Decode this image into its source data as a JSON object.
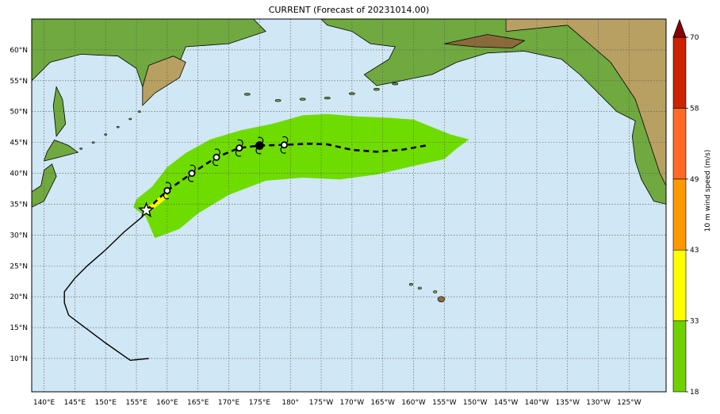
{
  "title": "CURRENT (Forecast of 20231014.00)",
  "map": {
    "lon_range": [
      138,
      241
    ],
    "lat_range": [
      4.6,
      65
    ],
    "lon_ticks": [
      {
        "lon": 140,
        "label": "140°E"
      },
      {
        "lon": 145,
        "label": "145°E"
      },
      {
        "lon": 150,
        "label": "150°E"
      },
      {
        "lon": 155,
        "label": "155°E"
      },
      {
        "lon": 160,
        "label": "160°E"
      },
      {
        "lon": 165,
        "label": "165°E"
      },
      {
        "lon": 170,
        "label": "170°E"
      },
      {
        "lon": 175,
        "label": "175°E"
      },
      {
        "lon": 180,
        "label": "180°"
      },
      {
        "lon": 185,
        "label": "175°W"
      },
      {
        "lon": 190,
        "label": "170°W"
      },
      {
        "lon": 195,
        "label": "165°W"
      },
      {
        "lon": 200,
        "label": "160°W"
      },
      {
        "lon": 205,
        "label": "155°W"
      },
      {
        "lon": 210,
        "label": "150°W"
      },
      {
        "lon": 215,
        "label": "145°W"
      },
      {
        "lon": 220,
        "label": "140°W"
      },
      {
        "lon": 225,
        "label": "135°W"
      },
      {
        "lon": 230,
        "label": "130°W"
      },
      {
        "lon": 235,
        "label": "125°W"
      }
    ],
    "lat_ticks": [
      {
        "lat": 10,
        "label": "10°N"
      },
      {
        "lat": 15,
        "label": "15°N"
      },
      {
        "lat": 20,
        "label": "20°N"
      },
      {
        "lat": 25,
        "label": "25°N"
      },
      {
        "lat": 30,
        "label": "30°N"
      },
      {
        "lat": 35,
        "label": "35°N"
      },
      {
        "lat": 40,
        "label": "40°N"
      },
      {
        "lat": 45,
        "label": "45°N"
      },
      {
        "lat": 50,
        "label": "50°N"
      },
      {
        "lat": 55,
        "label": "55°N"
      },
      {
        "lat": 60,
        "label": "60°N"
      }
    ],
    "colors": {
      "ocean": "#d0e7f5",
      "land_low": "#6fa93f",
      "land_mid": "#b8a062",
      "land_high": "#8a6a3b",
      "grid": "#555555",
      "swath": "#6fdc00"
    }
  },
  "past_track": [
    [
      157,
      10
    ],
    [
      154,
      9.7
    ],
    [
      150,
      12.5
    ],
    [
      146,
      15.5
    ],
    [
      144,
      17
    ],
    [
      143.3,
      19
    ],
    [
      143.3,
      20.8
    ],
    [
      145,
      23
    ],
    [
      147,
      25
    ],
    [
      150,
      27.6
    ],
    [
      153,
      30.5
    ],
    [
      156,
      33
    ],
    [
      156.6,
      34
    ]
  ],
  "current_position": {
    "lon": 156.6,
    "lat": 34
  },
  "forecast_track": [
    [
      156.6,
      34
    ],
    [
      160,
      37.2
    ],
    [
      164,
      40
    ],
    [
      168,
      42.6
    ],
    [
      171.7,
      44.1
    ],
    [
      175,
      44.5
    ],
    [
      179,
      44.6
    ],
    [
      183,
      44.8
    ],
    [
      186,
      44.7
    ],
    [
      190,
      43.8
    ],
    [
      194,
      43.5
    ],
    [
      198,
      43.8
    ],
    [
      202,
      44.5
    ]
  ],
  "forecast_points": [
    {
      "lon": 160,
      "lat": 37.2,
      "filled": false
    },
    {
      "lon": 164,
      "lat": 40,
      "filled": false
    },
    {
      "lon": 168,
      "lat": 42.6,
      "filled": false
    },
    {
      "lon": 171.7,
      "lat": 44.1,
      "filled": false
    },
    {
      "lon": 175,
      "lat": 44.5,
      "filled": true
    },
    {
      "lon": 179,
      "lat": 44.6,
      "filled": false
    }
  ],
  "wind_swath": [
    [
      158,
      29.5
    ],
    [
      162,
      31
    ],
    [
      165,
      33.5
    ],
    [
      170,
      36.5
    ],
    [
      176,
      38.8
    ],
    [
      182,
      39.3
    ],
    [
      188,
      39
    ],
    [
      194,
      39.8
    ],
    [
      200,
      41.2
    ],
    [
      205,
      42.3
    ],
    [
      207,
      44
    ],
    [
      209,
      45.5
    ],
    [
      206,
      46.3
    ],
    [
      203,
      47.5
    ],
    [
      200,
      48.7
    ],
    [
      196,
      49
    ],
    [
      191,
      49.2
    ],
    [
      186,
      49.6
    ],
    [
      182,
      49.4
    ],
    [
      177,
      48
    ],
    [
      172,
      47
    ],
    [
      167,
      45.5
    ],
    [
      163,
      43.3
    ],
    [
      160,
      41
    ],
    [
      157.5,
      37.8
    ],
    [
      155,
      35.8
    ],
    [
      154.5,
      34.5
    ],
    [
      156.5,
      33
    ]
  ],
  "colorbar": {
    "label": "10 m wind speed (m/s)",
    "ticks": [
      "18",
      "33",
      "43",
      "49",
      "58",
      "70"
    ],
    "colors": [
      "#6fd100",
      "#ffff00",
      "#ff9900",
      "#ff6a26",
      "#cc2200",
      "#8b0000"
    ]
  }
}
